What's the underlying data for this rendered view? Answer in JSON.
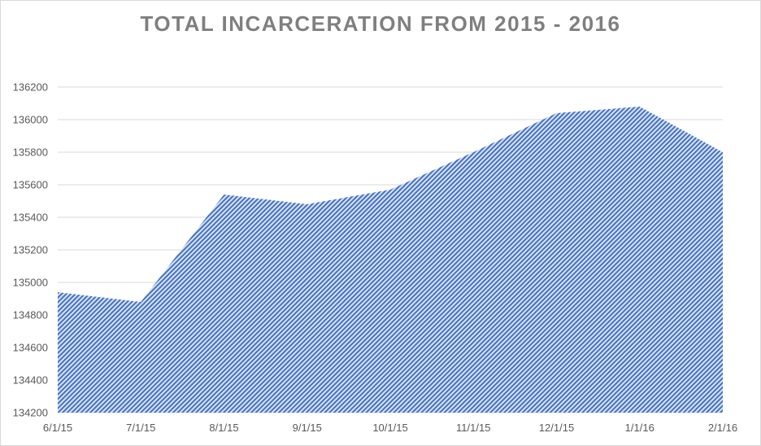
{
  "chart_data": {
    "type": "area",
    "title": "TOTAL INCARCERATION FROM 2015 - 2016",
    "xlabel": "",
    "ylabel": "",
    "x": [
      "6/1/15",
      "7/1/15",
      "8/1/15",
      "9/1/15",
      "10/1/15",
      "11/1/15",
      "12/1/15",
      "1/1/16",
      "2/1/16"
    ],
    "values": [
      134940,
      134880,
      135540,
      135480,
      135570,
      135800,
      136040,
      136080,
      135800
    ],
    "ylim": [
      134200,
      136200
    ],
    "yticks": [
      134200,
      134400,
      134600,
      134800,
      135000,
      135200,
      135400,
      135600,
      135800,
      136000,
      136200
    ],
    "grid": true,
    "legend": "none",
    "colors": {
      "fill": "#4472c4",
      "fill_light": "#dae3f3",
      "title": "#7f7f7f",
      "grid": "#d9d9d9",
      "tick": "#595959"
    }
  }
}
